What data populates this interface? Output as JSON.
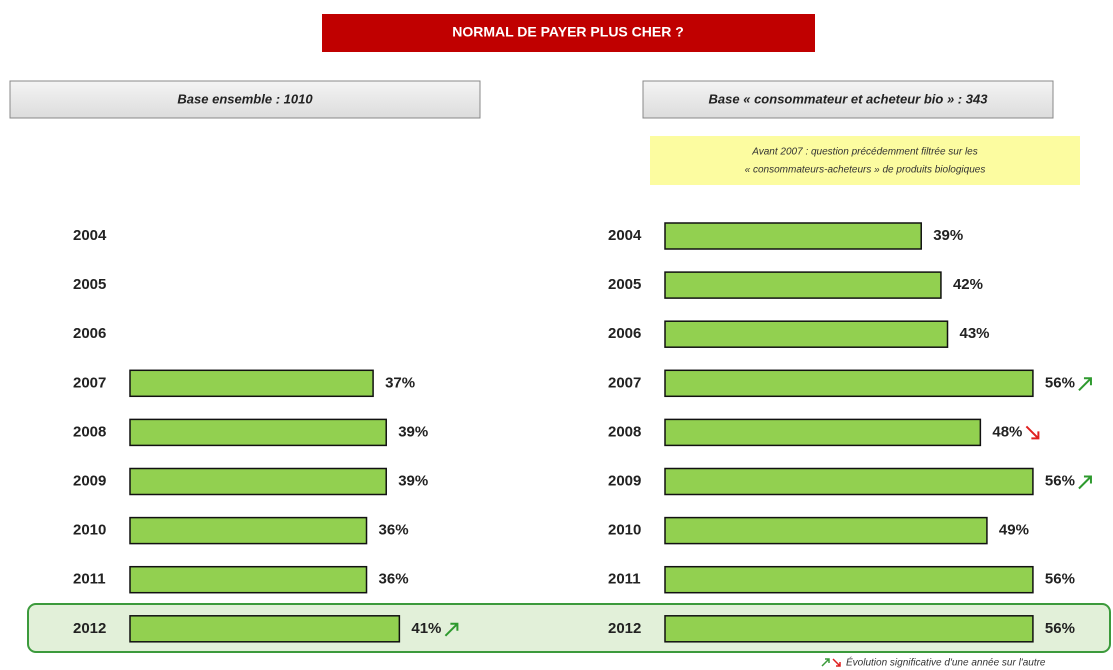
{
  "title": "NORMAL DE PAYER PLUS CHER ?",
  "note": [
    "Avant 2007 : question précédemment filtrée sur les",
    "« consommateurs-acheteurs » de produits biologiques"
  ],
  "footnote": "Évolution significative d'une année sur l'autre",
  "chart_data": [
    {
      "type": "bar",
      "orientation": "horizontal",
      "subtitle": "Base ensemble  : 1010",
      "categories": [
        "2004",
        "2005",
        "2006",
        "2007",
        "2008",
        "2009",
        "2010",
        "2011",
        "2012"
      ],
      "values": [
        null,
        null,
        null,
        37,
        39,
        39,
        36,
        36,
        41
      ],
      "value_labels": [
        null,
        null,
        null,
        "37%",
        "39%",
        "39%",
        "36%",
        "36%",
        "41%"
      ],
      "trend": [
        null,
        null,
        null,
        null,
        null,
        null,
        null,
        null,
        "up"
      ],
      "color": "#92d050"
    },
    {
      "type": "bar",
      "orientation": "horizontal",
      "subtitle": "Base « consommateur et acheteur bio » : 343",
      "categories": [
        "2004",
        "2005",
        "2006",
        "2007",
        "2008",
        "2009",
        "2010",
        "2011",
        "2012"
      ],
      "values": [
        39,
        42,
        43,
        56,
        48,
        56,
        49,
        56,
        56
      ],
      "value_labels": [
        "39%",
        "42%",
        "43%",
        "56%",
        "48%",
        "56%",
        "49%",
        "56%",
        "56%"
      ],
      "trend": [
        null,
        null,
        null,
        "up",
        "down",
        "up",
        null,
        null,
        null
      ],
      "color": "#92d050"
    }
  ]
}
